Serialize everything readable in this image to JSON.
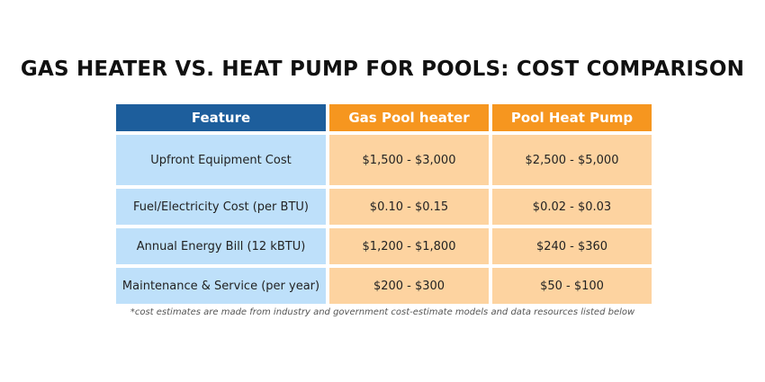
{
  "header": {
    "title": "GAS HEATER VS. HEAT PUMP FOR POOLS: COST COMPARISON"
  },
  "table": {
    "columns": [
      "Feature",
      "Gas Pool heater",
      "Pool Heat Pump"
    ],
    "rows": [
      [
        "Upfront Equipment Cost",
        "$1,500 - $3,000",
        "$2,500 - $5,000"
      ],
      [
        "Fuel/Electricity Cost (per BTU)",
        "$0.10 - $0.15",
        "$0.02 - $0.03"
      ],
      [
        "Annual Energy Bill (12 kBTU)",
        "$1,200 - $1,800",
        "$240 - $360"
      ],
      [
        "Maintenance & Service (per year)",
        "$200 - $300",
        "$50 - $100"
      ]
    ]
  },
  "footnote": "*cost estimates are made from industry and government cost-estimate models and data resources listed below"
}
